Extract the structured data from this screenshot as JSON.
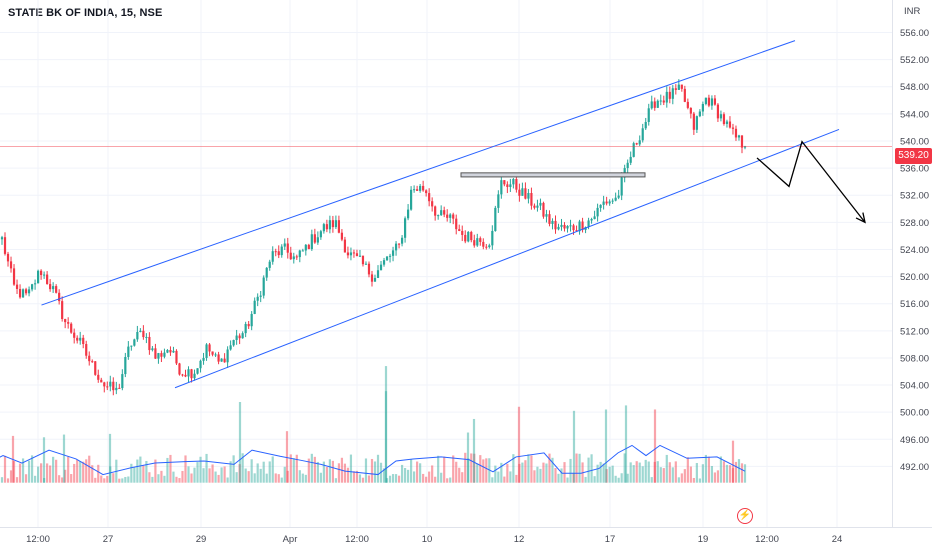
{
  "header": {
    "title": "STATE BK OF INDIA, 15, NSE"
  },
  "price_axis": {
    "currency": "INR",
    "last_price_label": "539.20"
  },
  "icons": {
    "alert": "lightning-icon"
  },
  "colors": {
    "up": "#26a69a",
    "down": "#f23645",
    "channel": "#2962ff",
    "volume_ma": "#2962ff",
    "last_price_line": "#f23645",
    "arrow": "#000000",
    "resistance_box": "#d1d4dc"
  },
  "chart_data": {
    "type": "candlestick",
    "title": "STATE BK OF INDIA, 15, NSE",
    "ylabel": "INR",
    "ylim": [
      489.6,
      557.7
    ],
    "y_ticks": [
      "556.00",
      "552.00",
      "548.00",
      "544.00",
      "540.00",
      "536.00",
      "532.00",
      "528.00",
      "524.00",
      "520.00",
      "516.00",
      "512.00",
      "508.00",
      "504.00",
      "500.00",
      "496.00",
      "492.00"
    ],
    "x_ticks": [
      "12:00",
      "27",
      "29",
      "Apr",
      "12:00",
      "10",
      "12",
      "17",
      "19",
      "12:00",
      "24"
    ],
    "last_price": 539.2,
    "price_path": [
      [
        525.5,
        525
      ],
      [
        518,
        520
      ],
      [
        517,
        519
      ],
      [
        521,
        519
      ],
      [
        518,
        518
      ],
      [
        513,
        516
      ],
      [
        510.5,
        513
      ],
      [
        507,
        513
      ],
      [
        504,
        512
      ],
      [
        503,
        511
      ],
      [
        510,
        511
      ],
      [
        512,
        512
      ],
      [
        508,
        513
      ],
      [
        509.5,
        510
      ],
      [
        506,
        508
      ],
      [
        506,
        507
      ],
      [
        509.5,
        509
      ],
      [
        507,
        508
      ],
      [
        510.5,
        510
      ],
      [
        512,
        511
      ],
      [
        517,
        513
      ],
      [
        523,
        521
      ],
      [
        524,
        521
      ],
      [
        522.5,
        521
      ],
      [
        525,
        523
      ],
      [
        527,
        525
      ],
      [
        528,
        526
      ],
      [
        523.5,
        524
      ],
      [
        522,
        522
      ],
      [
        520,
        520
      ],
      [
        522.5,
        522
      ],
      [
        524.5,
        525
      ],
      [
        533,
        531
      ],
      [
        533,
        531
      ],
      [
        529,
        531
      ],
      [
        528.5,
        528
      ],
      [
        526,
        526
      ],
      [
        525.5,
        525
      ],
      [
        525,
        525
      ],
      [
        534,
        533
      ],
      [
        533.5,
        533
      ],
      [
        531.5,
        532
      ],
      [
        530,
        531
      ],
      [
        527.5,
        529
      ],
      [
        527,
        529
      ],
      [
        527.5,
        528
      ],
      [
        528.5,
        528
      ],
      [
        531,
        530
      ],
      [
        531.5,
        532
      ],
      [
        537.5,
        535
      ],
      [
        542,
        538
      ],
      [
        546,
        540
      ],
      [
        546.5,
        543
      ],
      [
        547.5,
        546
      ],
      [
        542,
        544
      ],
      [
        546.5,
        544
      ],
      [
        544,
        543
      ],
      [
        541,
        542
      ],
      [
        539.2,
        540
      ]
    ],
    "volume_ma": [
      [
        -15,
        492.3
      ],
      [
        3,
        493.6
      ],
      [
        22,
        492.5
      ],
      [
        49,
        494.4
      ],
      [
        76,
        493.1
      ],
      [
        103,
        490.8
      ],
      [
        131,
        491.8
      ],
      [
        155,
        492.5
      ],
      [
        185,
        492.7
      ],
      [
        204,
        492.8
      ],
      [
        234,
        492.3
      ],
      [
        252,
        494.4
      ],
      [
        280,
        493.5
      ],
      [
        301,
        492.9
      ],
      [
        321,
        492.3
      ],
      [
        345,
        491.3
      ],
      [
        378,
        490.8
      ],
      [
        396,
        492.8
      ],
      [
        413,
        493.1
      ],
      [
        441,
        493.4
      ],
      [
        469,
        493.0
      ],
      [
        493,
        491.2
      ],
      [
        516,
        493.4
      ],
      [
        544,
        494.0
      ],
      [
        562,
        491.0
      ],
      [
        581,
        491.0
      ],
      [
        599,
        491.7
      ],
      [
        618,
        494.0
      ],
      [
        632,
        495.1
      ],
      [
        646,
        493.6
      ],
      [
        660,
        495.1
      ],
      [
        687,
        493.2
      ],
      [
        717,
        493.4
      ],
      [
        745,
        491.3
      ]
    ],
    "volume_spikes": [
      [
        13,
        496.5
      ],
      [
        44,
        496.3
      ],
      [
        64,
        496.7
      ],
      [
        110,
        496.8
      ],
      [
        240,
        501.5
      ],
      [
        287,
        497.2
      ],
      [
        386,
        506.8
      ],
      [
        386,
        503.1
      ],
      [
        468,
        497.0
      ],
      [
        474,
        499.0
      ],
      [
        519,
        500.8
      ],
      [
        574,
        500.2
      ],
      [
        606,
        500.4
      ],
      [
        626,
        501.0
      ],
      [
        655,
        500.4
      ],
      [
        733,
        495.8
      ]
    ],
    "annotations": {
      "upper_channel": [
        [
          41.5,
          515.8
        ],
        [
          795,
          554.8
        ]
      ],
      "lower_channel": [
        [
          175,
          503.6
        ],
        [
          839,
          541.7
        ]
      ],
      "resistance_box": {
        "x_range": [
          461,
          645
        ],
        "y_range": [
          534.7,
          535.3
        ]
      },
      "projection_path": [
        [
          757,
          537.5
        ],
        [
          789,
          533.3
        ],
        [
          802,
          539.9
        ],
        [
          865,
          528.0
        ]
      ]
    }
  }
}
